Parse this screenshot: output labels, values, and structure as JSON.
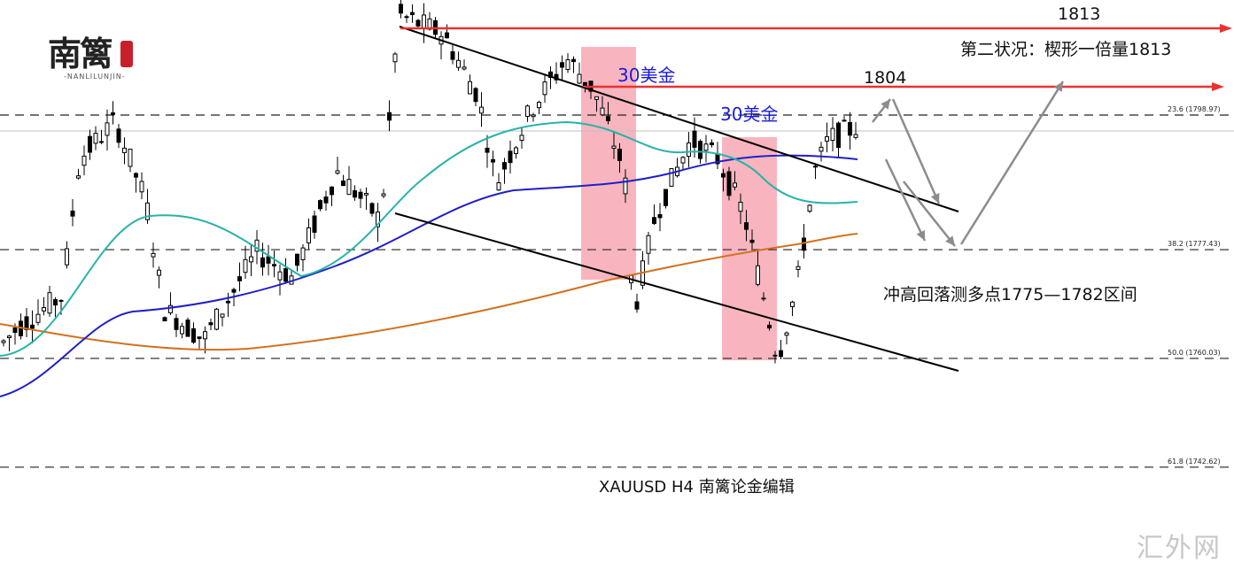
{
  "logo": {
    "text": "南篱",
    "subtitle": "-NANLILUNJIN-"
  },
  "watermark": "汇外网",
  "chart_data": {
    "type": "candlestick",
    "symbol_caption": "XAUUSD  H4  南篱论金编辑",
    "fibonacci_levels": [
      {
        "label": "23.6",
        "price": 1798.97,
        "text": "23.6 (1798.97)"
      },
      {
        "label": "38.2",
        "price": 1777.43,
        "text": "38.2 (1777.43)"
      },
      {
        "label": "50.0",
        "price": 1760.03,
        "text": "50.0 (1760.03)"
      },
      {
        "label": "61.8",
        "price": 1742.62,
        "text": "61.8 (1742.62)"
      }
    ],
    "annotations": [
      {
        "id": "t1813",
        "text": "1813",
        "color": "#111111"
      },
      {
        "id": "t1813b",
        "text": "第二状况：楔形一倍量1813",
        "color": "#111111"
      },
      {
        "id": "t1804",
        "text": "1804",
        "color": "#111111"
      },
      {
        "id": "t30a",
        "text": "30美金",
        "color": "#1a1adf"
      },
      {
        "id": "t30b",
        "text": "30美金",
        "color": "#1a1adf"
      },
      {
        "id": "tzone",
        "text": "冲高回落测多点1775—1782区间",
        "color": "#111111"
      }
    ],
    "target_levels": [
      1813,
      1804
    ],
    "ma_colors": {
      "fast": "#27b3a8",
      "mid": "#1f1fc8",
      "slow": "#d2711d"
    },
    "colors": {
      "target_arrow": "#e8322f",
      "highlight": "#f7a8b4",
      "channel": "#000000",
      "projection": "#8c8c8c"
    }
  }
}
